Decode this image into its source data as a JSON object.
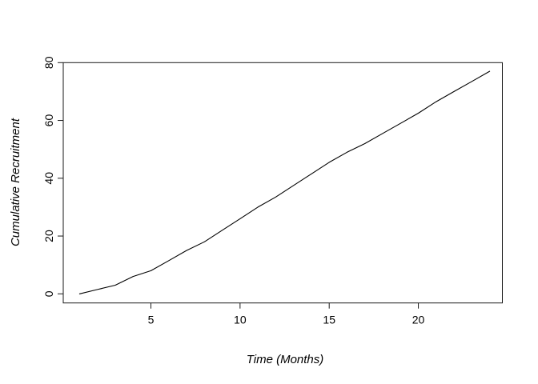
{
  "figure": {
    "background": "#ffffff",
    "axis_color": "#1a1a1a",
    "line_color": "#000000",
    "text_color": "#000000"
  },
  "chart_data": {
    "type": "line",
    "title": "",
    "xlabel": "Time (Months)",
    "ylabel": "Cumulative Recruitment",
    "x": [
      1,
      2,
      3,
      4,
      5,
      6,
      7,
      8,
      9,
      10,
      11,
      12,
      13,
      14,
      15,
      16,
      17,
      18,
      19,
      20,
      21,
      22,
      23,
      24
    ],
    "series": [
      {
        "name": "cumulative-recruitment",
        "values": [
          0,
          1.5,
          3,
          6,
          8,
          11.5,
          15,
          18,
          22,
          26,
          30,
          33.5,
          37.5,
          41.5,
          45.5,
          49,
          52,
          55.5,
          59,
          62.5,
          66.5,
          70,
          73.5,
          77
        ]
      }
    ],
    "x_ticks": [
      5,
      10,
      15,
      20
    ],
    "y_ticks": [
      0,
      20,
      40,
      60,
      80
    ],
    "xlim": [
      0.1,
      24.9
    ],
    "ylim": [
      -3.2,
      80
    ],
    "grid": false,
    "legend": "none",
    "box": true
  }
}
